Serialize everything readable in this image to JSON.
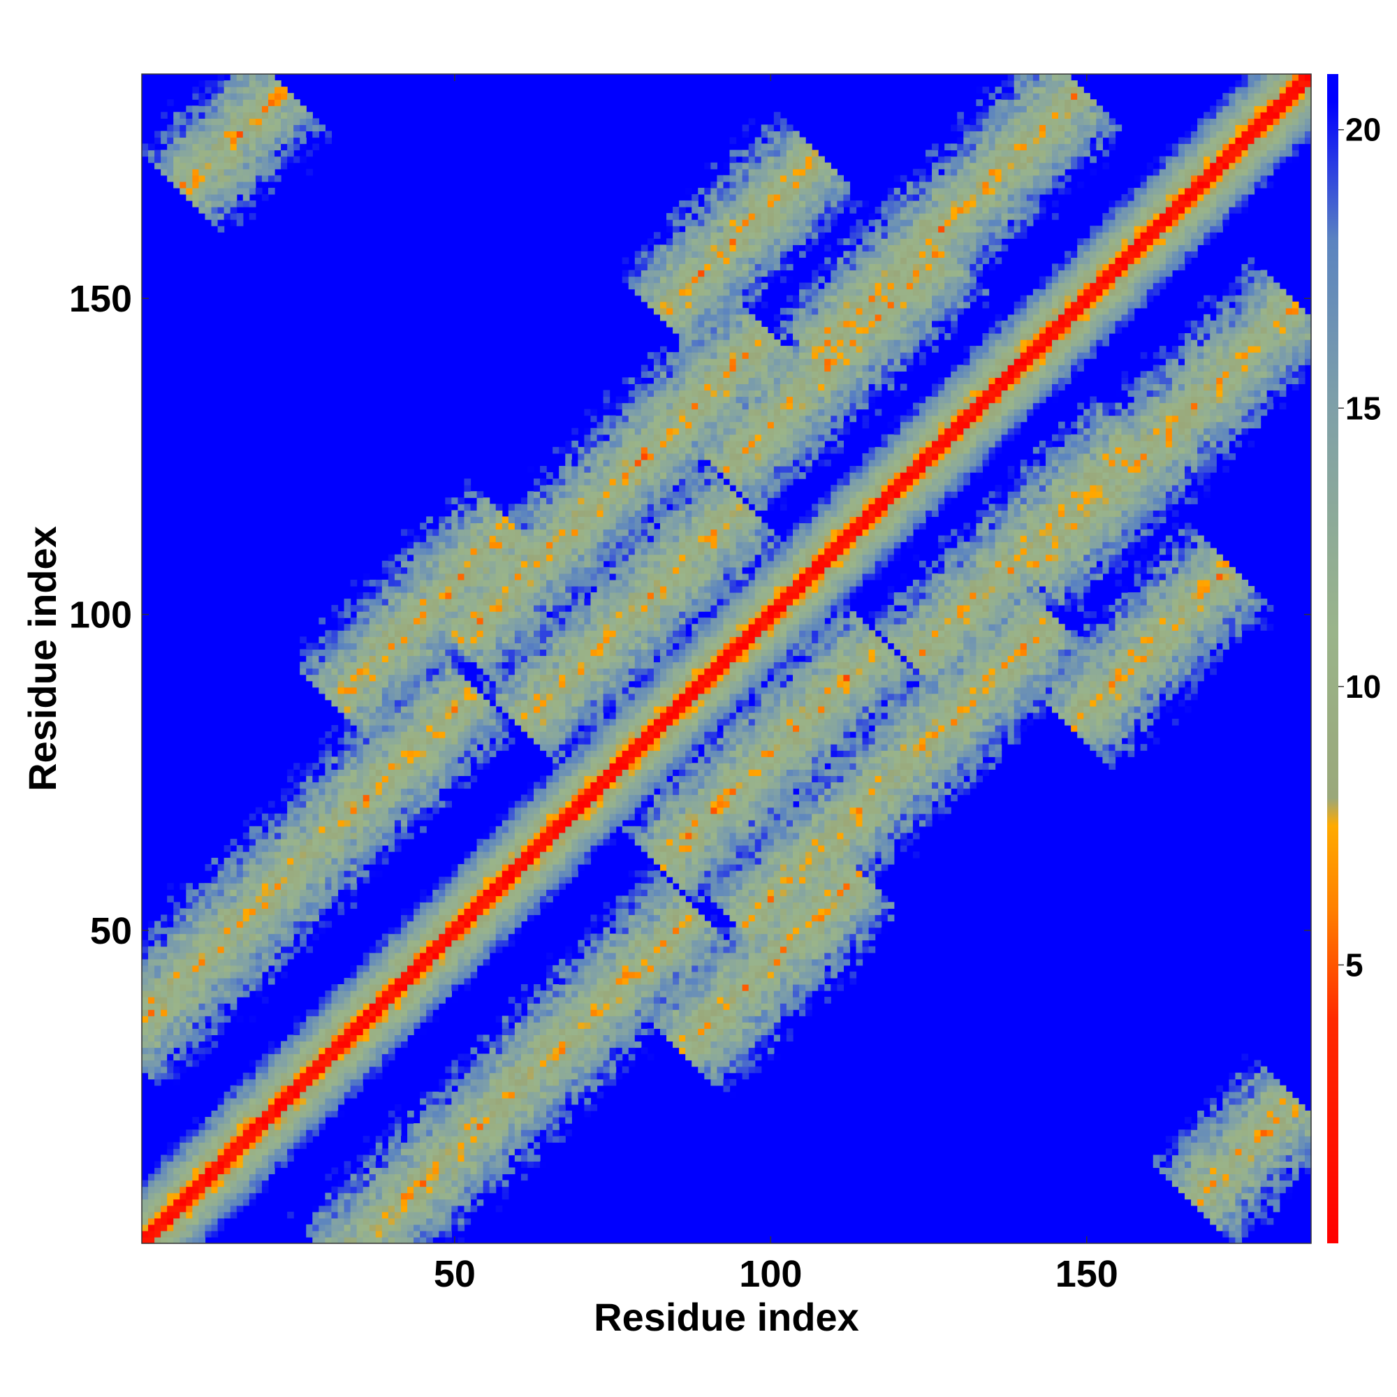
{
  "chart_data": {
    "type": "heatmap",
    "title": "",
    "xlabel": "Residue index",
    "ylabel": "Residue index",
    "n_residues": 185,
    "xlim": [
      1,
      185
    ],
    "ylim": [
      1,
      185
    ],
    "x_ticks": [
      {
        "value": 50,
        "label": "50"
      },
      {
        "value": 100,
        "label": "100"
      },
      {
        "value": 150,
        "label": "150"
      }
    ],
    "y_ticks": [
      {
        "value": 50,
        "label": "50"
      },
      {
        "value": 100,
        "label": "100"
      },
      {
        "value": 150,
        "label": "150"
      }
    ],
    "colorbar": {
      "range": [
        0,
        21
      ],
      "ticks": [
        {
          "value": 5,
          "label": "5"
        },
        {
          "value": 10,
          "label": "10"
        },
        {
          "value": 15,
          "label": "15"
        },
        {
          "value": 20,
          "label": "20"
        }
      ],
      "stops": [
        {
          "value": 0,
          "color": "#ff0000"
        },
        {
          "value": 4,
          "color": "#ff2a00"
        },
        {
          "value": 6,
          "color": "#ff8000"
        },
        {
          "value": 7.5,
          "color": "#ffaa00"
        },
        {
          "value": 8,
          "color": "#9aa87a"
        },
        {
          "value": 11,
          "color": "#9ab48a"
        },
        {
          "value": 15,
          "color": "#7fa0a8"
        },
        {
          "value": 18,
          "color": "#5b84c0"
        },
        {
          "value": 20.5,
          "color": "#0000ff"
        },
        {
          "value": 21,
          "color": "#0000ff"
        }
      ],
      "cap_color": "#0000ff"
    },
    "description_features": {
      "diagonal_band": {
        "from": 1,
        "to": 185
      },
      "off_diagonal_bands": [
        {
          "center": [
            20,
            60
          ],
          "direction": "anti"
        },
        {
          "center": [
            60,
            20
          ],
          "direction": "anti"
        },
        {
          "center": [
            70,
            120
          ],
          "direction": "anti"
        },
        {
          "center": [
            120,
            70
          ],
          "direction": "anti"
        },
        {
          "center": [
            125,
            160
          ],
          "direction": "anti"
        },
        {
          "center": [
            160,
            125
          ],
          "direction": "anti"
        },
        {
          "center": [
            100,
            80
          ],
          "direction": "anti"
        },
        {
          "center": [
            80,
            100
          ],
          "direction": "anti"
        }
      ]
    }
  }
}
